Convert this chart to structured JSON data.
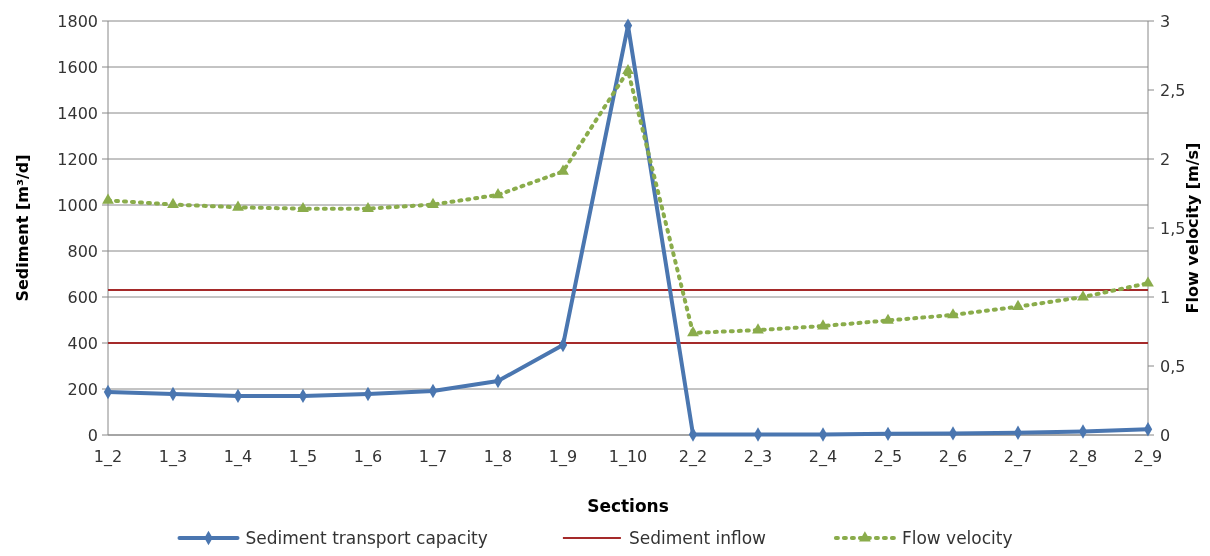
{
  "chart_data": {
    "type": "line",
    "xlabel": "Sections",
    "ylabel": "Sediment [m³/d]",
    "y2label": "Flow velocity [m/s]",
    "categories": [
      "1_2",
      "1_3",
      "1_4",
      "1_5",
      "1_6",
      "1_7",
      "1_8",
      "1_9",
      "1_10",
      "2_2",
      "2_3",
      "2_4",
      "2_5",
      "2_6",
      "2_7",
      "2_8",
      "2_9"
    ],
    "series": [
      {
        "name": "Sediment transport capacity",
        "color": "#4a76b0",
        "marker": "diamond",
        "line_style": "solid",
        "values": [
          187,
          178,
          170,
          170,
          178,
          191,
          235,
          391,
          1780,
          2,
          2,
          2,
          5,
          7,
          10,
          15,
          25
        ]
      },
      {
        "name": "Flow velocity",
        "color": "#8aac4b",
        "marker": "triangle",
        "line_style": "dotted",
        "axis": "y2",
        "values": [
          1.7,
          1.67,
          1.65,
          1.64,
          1.64,
          1.67,
          1.74,
          1.91,
          2.64,
          0.74,
          0.76,
          0.79,
          0.83,
          0.87,
          0.93,
          1.0,
          1.1
        ]
      }
    ],
    "ref_lines": [
      {
        "axis": "y",
        "value": 630,
        "label": "Sediment inflow",
        "color": "#a52a2a"
      },
      {
        "axis": "y",
        "value": 400,
        "label": null,
        "color": "#a52a2a"
      }
    ],
    "ylim": [
      0,
      1800
    ],
    "yticks": [
      0,
      200,
      400,
      600,
      800,
      1000,
      1200,
      1400,
      1600,
      1800
    ],
    "y2lim": [
      0,
      3
    ],
    "y2ticks": [
      0,
      {
        "value": 0.5,
        "label": "0,5"
      },
      1,
      {
        "value": 1.5,
        "label": "1,5"
      },
      2,
      {
        "value": 2.5,
        "label": "2,5"
      },
      3
    ],
    "grid": "y",
    "legend": "bottom"
  }
}
